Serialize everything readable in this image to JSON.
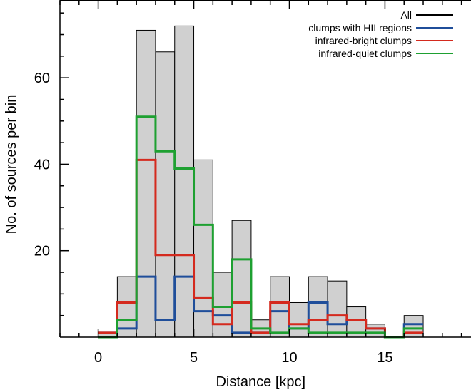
{
  "chart_data": {
    "type": "histogram",
    "xlabel": "Distance [kpc]",
    "ylabel": "No. of sources per bin",
    "xlim": [
      -2,
      19.5
    ],
    "ylim": [
      0,
      78
    ],
    "bin_width": 1,
    "bin_starts": [
      0,
      1,
      2,
      3,
      4,
      5,
      6,
      7,
      8,
      9,
      10,
      11,
      12,
      13,
      14,
      15,
      16
    ],
    "x_ticks": [
      0,
      5,
      10,
      15
    ],
    "y_ticks": [
      20,
      40,
      60
    ],
    "legend_position": "top-right",
    "series": [
      {
        "name": "All",
        "color": "#000000",
        "fill": "#d0d0d0",
        "style": "filled-bars",
        "values": [
          1,
          14,
          71,
          66,
          72,
          41,
          15,
          27,
          4,
          14,
          8,
          14,
          13,
          7,
          3,
          0,
          5
        ]
      },
      {
        "name": "clumps with HII regions",
        "color": "#1f4e9a",
        "style": "step",
        "values": [
          1,
          2,
          14,
          4,
          14,
          6,
          5,
          1,
          1,
          6,
          2,
          8,
          3,
          4,
          2,
          0,
          3
        ]
      },
      {
        "name": "infrared-bright clumps",
        "color": "#d42a1e",
        "style": "step",
        "values": [
          1,
          8,
          41,
          19,
          19,
          9,
          3,
          8,
          1,
          8,
          3,
          4,
          5,
          4,
          2,
          0,
          1
        ]
      },
      {
        "name": "infrared-quiet clumps",
        "color": "#1ea031",
        "style": "step",
        "values": [
          0,
          4,
          51,
          43,
          39,
          26,
          7,
          18,
          2,
          1,
          2,
          1,
          1,
          1,
          1,
          0,
          2
        ]
      }
    ]
  }
}
